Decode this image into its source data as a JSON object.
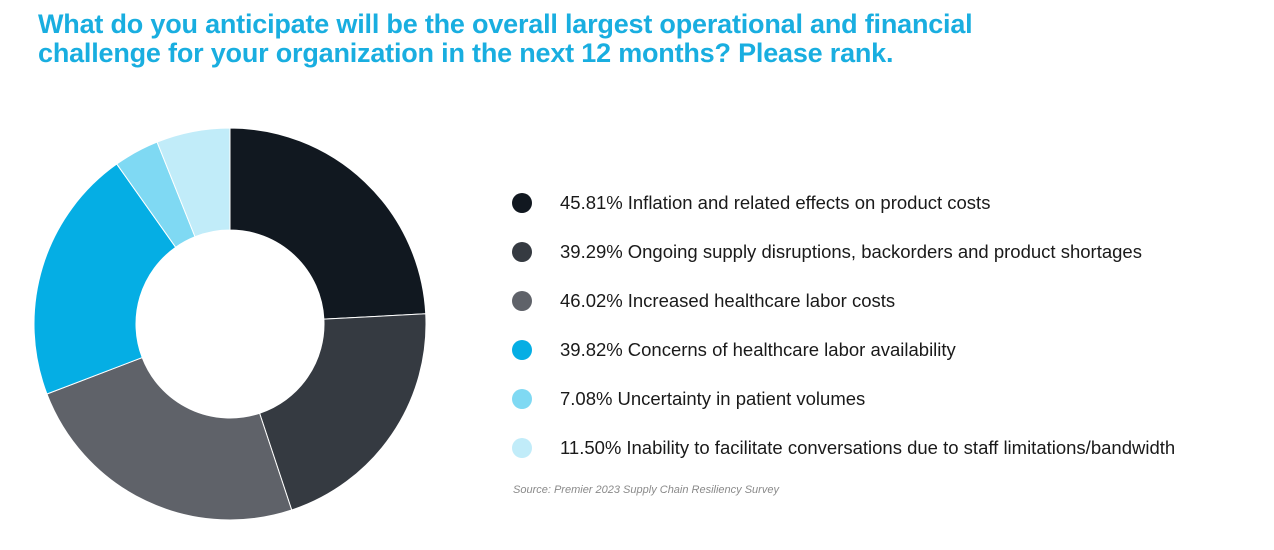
{
  "title_lines": [
    "What do you anticipate will be the overall largest operational and financial",
    "challenge for your organization in the next 12 months? Please rank."
  ],
  "source": "Source: Premier 2023 Supply Chain Resiliency Survey",
  "chart_data": {
    "type": "pie",
    "donut": true,
    "title": "What do you anticipate will be the overall largest operational and financial challenge for your organization in the next 12 months? Please rank.",
    "legend_position": "right",
    "slices": [
      {
        "pct_label": "45.81%",
        "label": "Inflation and related effects on product costs",
        "value": 45.81,
        "color": "#111820"
      },
      {
        "pct_label": "39.29%",
        "label": "Ongoing supply disruptions, backorders and product shortages",
        "value": 39.29,
        "color": "#353a41"
      },
      {
        "pct_label": "46.02%",
        "label": "Increased healthcare labor costs",
        "value": 46.02,
        "color": "#5f6269"
      },
      {
        "pct_label": "39.82%",
        "label": "Concerns of healthcare labor availability",
        "value": 39.82,
        "color": "#05aee4"
      },
      {
        "pct_label": "7.08%",
        "label": "Uncertainty in patient volumes",
        "value": 7.08,
        "color": "#7fd9f3"
      },
      {
        "pct_label": "11.50%",
        "label": "Inability to facilitate conversations due to staff limitations/bandwidth",
        "value": 11.5,
        "color": "#c1ecf9"
      }
    ]
  }
}
